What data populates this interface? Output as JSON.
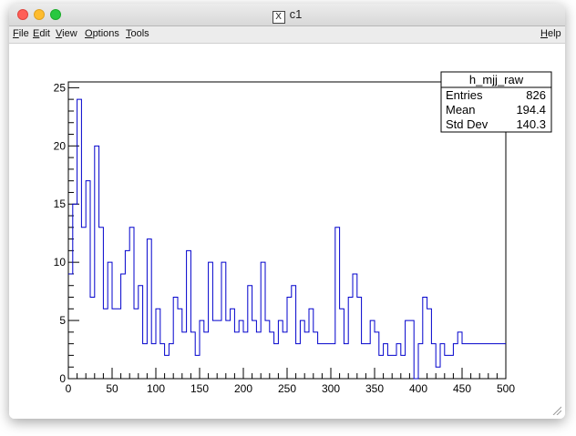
{
  "window": {
    "title": "c1"
  },
  "menu": {
    "file": "File",
    "edit": "Edit",
    "view": "View",
    "options": "Options",
    "tools": "Tools",
    "help": "Help"
  },
  "chart_data": {
    "type": "bar",
    "style": "step-histogram",
    "title": "",
    "xlabel": "",
    "ylabel": "",
    "xlim": [
      0,
      500
    ],
    "ylim": [
      0,
      25.5
    ],
    "bin_width": 5,
    "x_ticks": [
      "0",
      "50",
      "100",
      "150",
      "200",
      "250",
      "300",
      "350",
      "400",
      "450",
      "500"
    ],
    "y_ticks": [
      "0",
      "5",
      "10",
      "15",
      "20",
      "25"
    ],
    "values": [
      9,
      15,
      24,
      13,
      17,
      7,
      20,
      13,
      6,
      10,
      6,
      6,
      9,
      11,
      13,
      6,
      8,
      3,
      12,
      3,
      6,
      3,
      2,
      3,
      7,
      6,
      4,
      11,
      4,
      2,
      5,
      4,
      10,
      5,
      5,
      10,
      5,
      6,
      4,
      5,
      4,
      8,
      5,
      4,
      10,
      5,
      4,
      3,
      5,
      4,
      7,
      8,
      3,
      5,
      4,
      6,
      4,
      3,
      3,
      3,
      3,
      13,
      6,
      3,
      7,
      9,
      7,
      3,
      3,
      5,
      4,
      2,
      3,
      2,
      2,
      3,
      2,
      5,
      5,
      -1,
      3,
      7,
      6,
      3,
      1,
      3,
      2,
      2,
      3,
      4,
      3,
      3,
      3,
      3,
      3,
      3,
      3,
      3,
      3,
      3
    ],
    "line_color": "#0000cc",
    "stats_box": {
      "title": "h_mjj_raw",
      "rows": [
        {
          "label": "Entries",
          "value": "826"
        },
        {
          "label": "Mean",
          "value": "194.4"
        },
        {
          "label": "Std Dev",
          "value": "140.3"
        }
      ]
    }
  }
}
